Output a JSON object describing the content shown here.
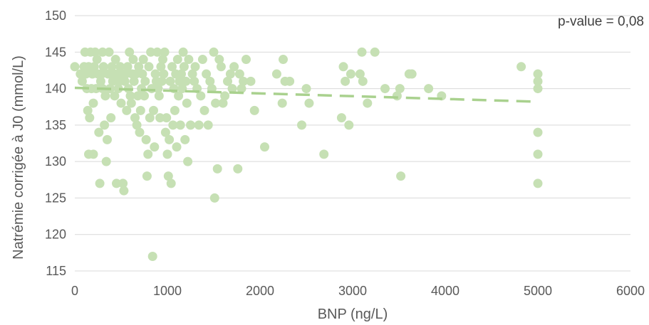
{
  "chart_data": {
    "type": "scatter",
    "title": "",
    "xlabel": "BNP (ng/L)",
    "ylabel": "Natrémie corrigée à J0 (mmol/L)",
    "xlim": [
      0,
      6000
    ],
    "ylim": [
      115,
      150
    ],
    "x_ticks": [
      "0",
      "1000",
      "2000",
      "3000",
      "4000",
      "5000",
      "6000"
    ],
    "y_ticks": [
      "115",
      "120",
      "125",
      "130",
      "135",
      "140",
      "145",
      "150"
    ],
    "grid": "horizontal",
    "annotation": "p-value = 0,08",
    "marker_color": "#c6e0b4",
    "trendline_color": "#a9d18e",
    "trendline": {
      "style": "dashed",
      "x": [
        0,
        5000
      ],
      "y": [
        140.1,
        138.2
      ]
    },
    "points": [
      [
        0,
        143
      ],
      [
        60,
        142
      ],
      [
        80,
        141
      ],
      [
        100,
        143
      ],
      [
        110,
        145
      ],
      [
        120,
        142
      ],
      [
        130,
        140
      ],
      [
        140,
        137
      ],
      [
        150,
        131
      ],
      [
        150,
        143
      ],
      [
        160,
        136
      ],
      [
        170,
        145
      ],
      [
        180,
        140
      ],
      [
        190,
        142
      ],
      [
        200,
        131
      ],
      [
        200,
        138
      ],
      [
        210,
        143
      ],
      [
        220,
        145
      ],
      [
        230,
        140
      ],
      [
        240,
        144
      ],
      [
        250,
        142
      ],
      [
        260,
        134
      ],
      [
        270,
        127
      ],
      [
        280,
        141
      ],
      [
        290,
        142
      ],
      [
        300,
        140
      ],
      [
        300,
        145
      ],
      [
        310,
        143
      ],
      [
        320,
        135
      ],
      [
        330,
        139
      ],
      [
        340,
        130
      ],
      [
        350,
        133
      ],
      [
        360,
        142
      ],
      [
        370,
        145
      ],
      [
        380,
        140
      ],
      [
        390,
        136
      ],
      [
        400,
        143
      ],
      [
        410,
        141
      ],
      [
        420,
        142
      ],
      [
        430,
        139
      ],
      [
        440,
        144
      ],
      [
        450,
        127
      ],
      [
        460,
        142
      ],
      [
        470,
        140
      ],
      [
        480,
        141
      ],
      [
        490,
        143
      ],
      [
        500,
        138
      ],
      [
        510,
        142
      ],
      [
        520,
        127
      ],
      [
        530,
        126
      ],
      [
        540,
        141
      ],
      [
        550,
        142
      ],
      [
        560,
        137
      ],
      [
        570,
        143
      ],
      [
        580,
        140
      ],
      [
        590,
        145
      ],
      [
        600,
        139
      ],
      [
        610,
        138
      ],
      [
        620,
        142
      ],
      [
        630,
        144
      ],
      [
        640,
        141
      ],
      [
        650,
        136
      ],
      [
        660,
        142
      ],
      [
        670,
        135
      ],
      [
        680,
        139
      ],
      [
        690,
        143
      ],
      [
        700,
        134
      ],
      [
        710,
        137
      ],
      [
        720,
        140
      ],
      [
        730,
        142
      ],
      [
        740,
        144
      ],
      [
        750,
        139
      ],
      [
        760,
        141
      ],
      [
        770,
        133
      ],
      [
        780,
        128
      ],
      [
        790,
        131
      ],
      [
        800,
        143
      ],
      [
        810,
        136
      ],
      [
        820,
        145
      ],
      [
        830,
        140
      ],
      [
        840,
        117
      ],
      [
        850,
        137
      ],
      [
        860,
        132
      ],
      [
        870,
        142
      ],
      [
        880,
        141
      ],
      [
        890,
        145
      ],
      [
        900,
        140
      ],
      [
        910,
        139
      ],
      [
        920,
        136
      ],
      [
        930,
        143
      ],
      [
        940,
        141
      ],
      [
        950,
        144
      ],
      [
        960,
        142
      ],
      [
        970,
        145
      ],
      [
        980,
        134
      ],
      [
        990,
        136
      ],
      [
        1000,
        131
      ],
      [
        1010,
        128
      ],
      [
        1020,
        133
      ],
      [
        1030,
        141
      ],
      [
        1040,
        127
      ],
      [
        1050,
        143
      ],
      [
        1060,
        135
      ],
      [
        1070,
        140
      ],
      [
        1080,
        137
      ],
      [
        1090,
        142
      ],
      [
        1100,
        132
      ],
      [
        1110,
        144
      ],
      [
        1120,
        139
      ],
      [
        1130,
        141
      ],
      [
        1140,
        135
      ],
      [
        1150,
        142
      ],
      [
        1160,
        140
      ],
      [
        1170,
        145
      ],
      [
        1180,
        143
      ],
      [
        1190,
        133
      ],
      [
        1200,
        141
      ],
      [
        1210,
        138
      ],
      [
        1220,
        130
      ],
      [
        1230,
        144
      ],
      [
        1250,
        135
      ],
      [
        1270,
        142
      ],
      [
        1290,
        141
      ],
      [
        1300,
        143
      ],
      [
        1320,
        140
      ],
      [
        1340,
        135
      ],
      [
        1360,
        139
      ],
      [
        1380,
        144
      ],
      [
        1400,
        137
      ],
      [
        1420,
        142
      ],
      [
        1440,
        135
      ],
      [
        1460,
        141
      ],
      [
        1480,
        140
      ],
      [
        1500,
        145
      ],
      [
        1510,
        125
      ],
      [
        1520,
        138
      ],
      [
        1540,
        129
      ],
      [
        1560,
        144
      ],
      [
        1580,
        143
      ],
      [
        1600,
        138
      ],
      [
        1620,
        139
      ],
      [
        1650,
        141
      ],
      [
        1680,
        142
      ],
      [
        1700,
        140
      ],
      [
        1720,
        143
      ],
      [
        1760,
        129
      ],
      [
        1780,
        142
      ],
      [
        1800,
        140
      ],
      [
        1820,
        141
      ],
      [
        1850,
        144
      ],
      [
        1900,
        141
      ],
      [
        1940,
        137
      ],
      [
        2050,
        132
      ],
      [
        2180,
        142
      ],
      [
        2240,
        138
      ],
      [
        2250,
        144
      ],
      [
        2270,
        141
      ],
      [
        2320,
        141
      ],
      [
        2450,
        135
      ],
      [
        2500,
        140
      ],
      [
        2530,
        138
      ],
      [
        2690,
        131
      ],
      [
        2880,
        136
      ],
      [
        2900,
        143
      ],
      [
        2920,
        141
      ],
      [
        2960,
        135
      ],
      [
        2980,
        142
      ],
      [
        3080,
        142
      ],
      [
        3100,
        145
      ],
      [
        3110,
        141
      ],
      [
        3160,
        138
      ],
      [
        3240,
        145
      ],
      [
        3350,
        140
      ],
      [
        3480,
        139
      ],
      [
        3510,
        140
      ],
      [
        3520,
        128
      ],
      [
        3610,
        142
      ],
      [
        3640,
        142
      ],
      [
        3820,
        140
      ],
      [
        3960,
        139
      ],
      [
        4820,
        143
      ],
      [
        5000,
        142
      ],
      [
        5000,
        141
      ],
      [
        5000,
        140
      ],
      [
        5000,
        134
      ],
      [
        5000,
        131
      ],
      [
        5000,
        127
      ]
    ]
  }
}
